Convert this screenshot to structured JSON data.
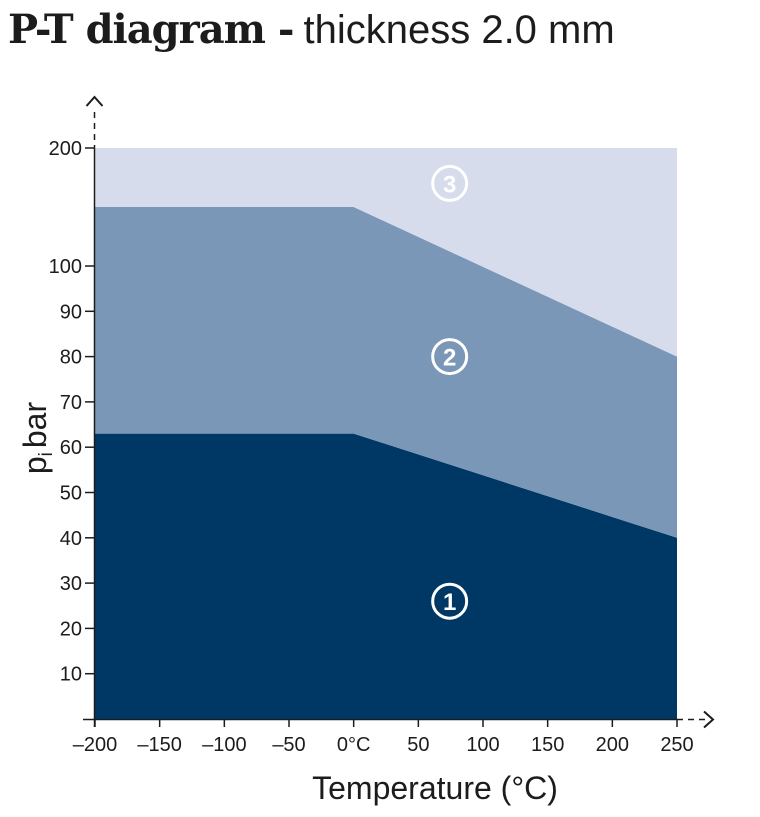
{
  "header": {
    "title_bold": "P-T diagram -",
    "title_rest": "thickness 2.0 mm"
  },
  "chart_data": {
    "type": "area",
    "title": "P-T diagram - thickness 2.0 mm",
    "xlabel": "Temperature (°C)",
    "ylabel_main": "p",
    "ylabel_sub": "i",
    "ylabel_rest": "bar",
    "xlim": [
      -200,
      250
    ],
    "x_ticks": [
      -200,
      -150,
      -100,
      -50,
      0,
      50,
      100,
      150,
      200,
      250
    ],
    "x_tick_labels": [
      "–200",
      "–150",
      "–100",
      "–50",
      "0°C",
      "50",
      "100",
      "150",
      "200",
      "250"
    ],
    "y_ticks": [
      10,
      20,
      30,
      40,
      50,
      60,
      70,
      80,
      90,
      100,
      200
    ],
    "y_tick_labels": [
      "10",
      "20",
      "30",
      "40",
      "50",
      "60",
      "70",
      "80",
      "90",
      "100",
      "200"
    ],
    "y_scale": "linear from 0 to 100, compressed break between 100 and 200",
    "grid": false,
    "x": [
      -200,
      0,
      250
    ],
    "boundaries": [
      {
        "name": "1",
        "values": [
          63,
          63,
          40
        ]
      },
      {
        "name": "2",
        "values": [
          150,
          150,
          80
        ]
      },
      {
        "name": "3",
        "values": [
          200,
          200,
          200
        ]
      }
    ],
    "zones": [
      {
        "label": "1",
        "color": "#003865",
        "label_at": {
          "x": 75,
          "y": 26
        }
      },
      {
        "label": "2",
        "color": "#7b97b8",
        "label_at": {
          "x": 75,
          "y": 80
        }
      },
      {
        "label": "3",
        "color": "#d6dceb",
        "label_at": {
          "x": 75,
          "y": 170
        }
      }
    ]
  }
}
